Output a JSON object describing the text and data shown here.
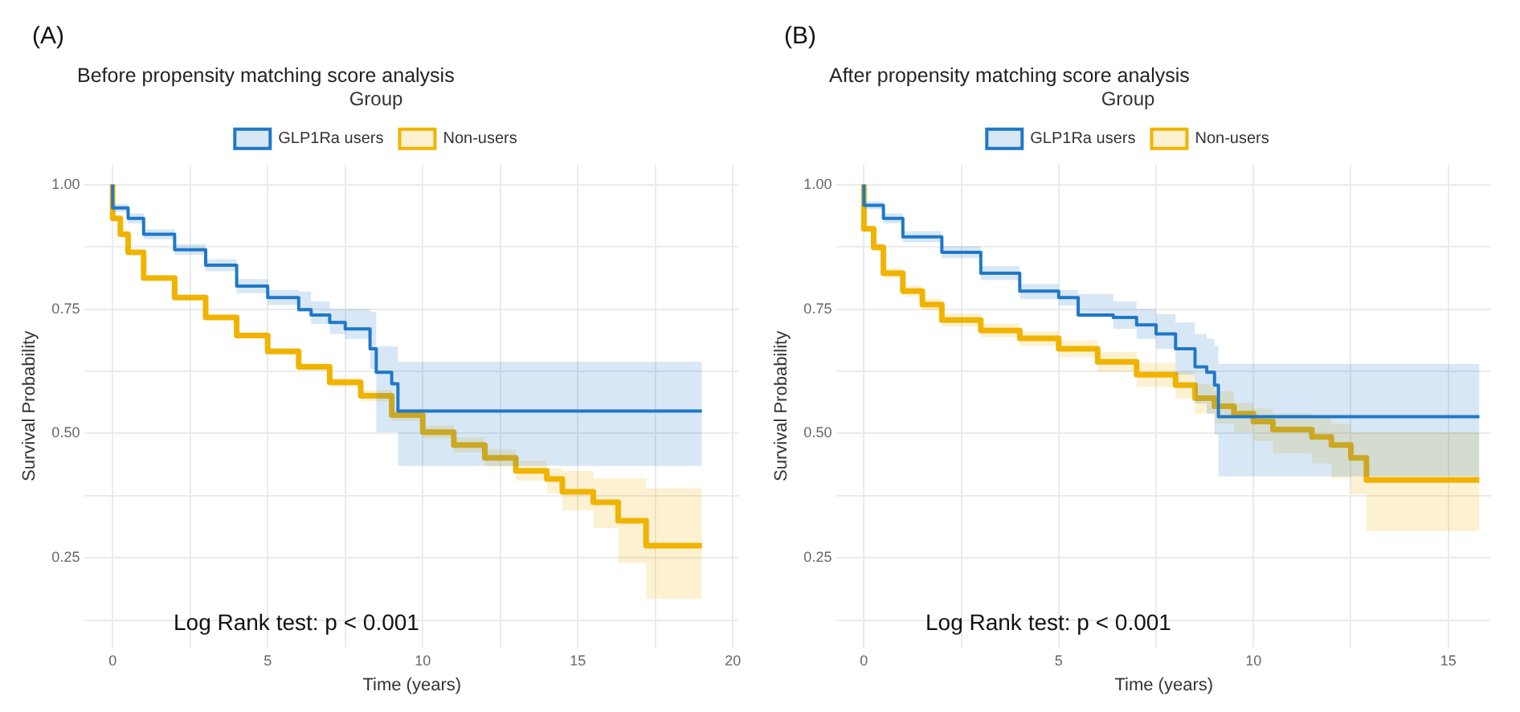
{
  "chart_data": [
    {
      "type": "step",
      "title": "Before propensity matching score analysis",
      "xlabel": "Time (years)",
      "ylabel": "Survival Probability",
      "legend_title": "Group",
      "legend": "top",
      "grid": true,
      "marker": "none",
      "annotations": [
        "(A)",
        "Log Rank test: p < 0.001"
      ],
      "xlim": [
        -0.9,
        20.2
      ],
      "xticks": [
        0,
        {
          "value": 2.5,
          "label": null
        },
        5,
        {
          "value": 7.5,
          "label": null
        },
        10,
        {
          "value": 12.5,
          "label": null
        },
        15,
        {
          "value": 17.5,
          "label": null
        },
        20
      ],
      "ylim": [
        0.07,
        1.04
      ],
      "yticks": [
        {
          "value": 0.125,
          "label": null
        },
        {
          "value": 0.25,
          "label": "0.25"
        },
        {
          "value": 0.375,
          "label": null
        },
        {
          "value": 0.5,
          "label": "0.50"
        },
        {
          "value": 0.625,
          "label": null
        },
        {
          "value": 0.75,
          "label": "0.75"
        },
        {
          "value": 0.875,
          "label": null
        },
        {
          "value": 1,
          "label": "1.00"
        }
      ],
      "series": [
        {
          "name": "GLP1Ra users",
          "color": "#1f78c8",
          "x": [
            0,
            0.5,
            1,
            2,
            3,
            4,
            5,
            6,
            6.4,
            7,
            7.5,
            8.3,
            8.5,
            9,
            9.2,
            9.6,
            19
          ],
          "values": [
            1,
            0.953,
            0.932,
            0.9,
            0.869,
            0.838,
            0.796,
            0.773,
            0.749,
            0.738,
            0.723,
            0.71,
            0.67,
            0.623,
            0.6,
            0.545,
            0.545
          ],
          "lower": [
            1,
            0.945,
            0.922,
            0.89,
            0.859,
            0.826,
            0.782,
            0.758,
            0.744,
            0.72,
            0.7,
            0.69,
            0.63,
            0.503,
            0.503,
            0.435,
            0.435
          ],
          "upper": [
            1,
            0.961,
            0.942,
            0.91,
            0.88,
            0.85,
            0.81,
            0.788,
            0.785,
            0.765,
            0.75,
            0.75,
            0.745,
            0.675,
            0.675,
            0.644,
            0.644
          ]
        },
        {
          "name": "Non-users",
          "color": "#f0b400",
          "x": [
            0,
            0.25,
            0.5,
            1,
            2,
            3,
            4,
            5,
            6,
            7,
            8,
            9,
            10,
            11,
            12,
            13,
            14,
            14.5,
            15.5,
            16.3,
            17.2,
            17.5,
            19
          ],
          "values": [
            1,
            0.932,
            0.9,
            0.864,
            0.812,
            0.773,
            0.733,
            0.697,
            0.665,
            0.634,
            0.603,
            0.576,
            0.537,
            0.503,
            0.477,
            0.451,
            0.425,
            0.409,
            0.383,
            0.362,
            0.325,
            0.275,
            0.275
          ],
          "lower": [
            1,
            0.93,
            0.897,
            0.86,
            0.808,
            0.768,
            0.728,
            0.691,
            0.658,
            0.626,
            0.594,
            0.565,
            0.525,
            0.49,
            0.462,
            0.434,
            0.405,
            0.38,
            0.346,
            0.31,
            0.24,
            0.168,
            0.168
          ],
          "upper": [
            1,
            0.934,
            0.903,
            0.868,
            0.816,
            0.778,
            0.738,
            0.703,
            0.672,
            0.642,
            0.612,
            0.587,
            0.549,
            0.516,
            0.492,
            0.468,
            0.445,
            0.43,
            0.425,
            0.41,
            0.41,
            0.39,
            0.39
          ]
        }
      ]
    },
    {
      "type": "step",
      "title": "After propensity matching score analysis",
      "xlabel": "Time (years)",
      "ylabel": "Survival Probability",
      "legend_title": "Group",
      "legend": "top",
      "grid": true,
      "marker": "none",
      "annotations": [
        "(B)",
        "Log Rank test: p < 0.001"
      ],
      "xlim": [
        -0.7,
        16.1
      ],
      "xticks": [
        0,
        {
          "value": 2.5,
          "label": null
        },
        5,
        {
          "value": 7.5,
          "label": null
        },
        10,
        {
          "value": 12.5,
          "label": null
        },
        15
      ],
      "ylim": [
        0.07,
        1.04
      ],
      "yticks": [
        {
          "value": 0.125,
          "label": null
        },
        {
          "value": 0.25,
          "label": "0.25"
        },
        {
          "value": 0.375,
          "label": null
        },
        {
          "value": 0.5,
          "label": "0.50"
        },
        {
          "value": 0.625,
          "label": null
        },
        {
          "value": 0.75,
          "label": "0.75"
        },
        {
          "value": 0.875,
          "label": null
        },
        {
          "value": 1,
          "label": "1.00"
        }
      ],
      "series": [
        {
          "name": "GLP1Ra users",
          "color": "#1f78c8",
          "x": [
            0,
            0.5,
            1,
            2,
            3,
            4,
            5,
            5.5,
            6.4,
            7,
            7.5,
            8,
            8.5,
            8.8,
            9,
            9.1,
            9.5,
            15.8
          ],
          "values": [
            1,
            0.958,
            0.932,
            0.895,
            0.864,
            0.822,
            0.786,
            0.773,
            0.738,
            0.733,
            0.718,
            0.7,
            0.67,
            0.634,
            0.623,
            0.597,
            0.534,
            0.534
          ],
          "lower": [
            1,
            0.95,
            0.922,
            0.884,
            0.852,
            0.808,
            0.77,
            0.757,
            0.733,
            0.71,
            0.69,
            0.67,
            0.618,
            0.56,
            0.54,
            0.498,
            0.414,
            0.414
          ],
          "upper": [
            1,
            0.966,
            0.942,
            0.906,
            0.876,
            0.836,
            0.8,
            0.788,
            0.78,
            0.765,
            0.75,
            0.74,
            0.723,
            0.7,
            0.69,
            0.676,
            0.64,
            0.64
          ]
        },
        {
          "name": "Non-users",
          "color": "#f0b400",
          "x": [
            0,
            0.25,
            0.5,
            1,
            1.5,
            2,
            3,
            4,
            5,
            6,
            7,
            8,
            8.5,
            9,
            9.5,
            10,
            10.5,
            11.5,
            12,
            12.5,
            12.9,
            13.2,
            15.8
          ],
          "values": [
            1,
            0.911,
            0.874,
            0.822,
            0.786,
            0.759,
            0.728,
            0.707,
            0.691,
            0.67,
            0.644,
            0.618,
            0.597,
            0.571,
            0.555,
            0.54,
            0.524,
            0.508,
            0.493,
            0.477,
            0.451,
            0.407,
            0.407
          ],
          "lower": [
            1,
            0.905,
            0.866,
            0.812,
            0.775,
            0.747,
            0.715,
            0.693,
            0.676,
            0.653,
            0.624,
            0.594,
            0.57,
            0.54,
            0.52,
            0.503,
            0.485,
            0.46,
            0.44,
            0.41,
            0.378,
            0.304,
            0.304
          ],
          "upper": [
            1,
            0.917,
            0.882,
            0.832,
            0.797,
            0.771,
            0.741,
            0.721,
            0.706,
            0.687,
            0.664,
            0.642,
            0.624,
            0.6,
            0.585,
            0.561,
            0.55,
            0.54,
            0.534,
            0.52,
            0.503,
            0.503,
            0.503
          ]
        }
      ]
    }
  ]
}
